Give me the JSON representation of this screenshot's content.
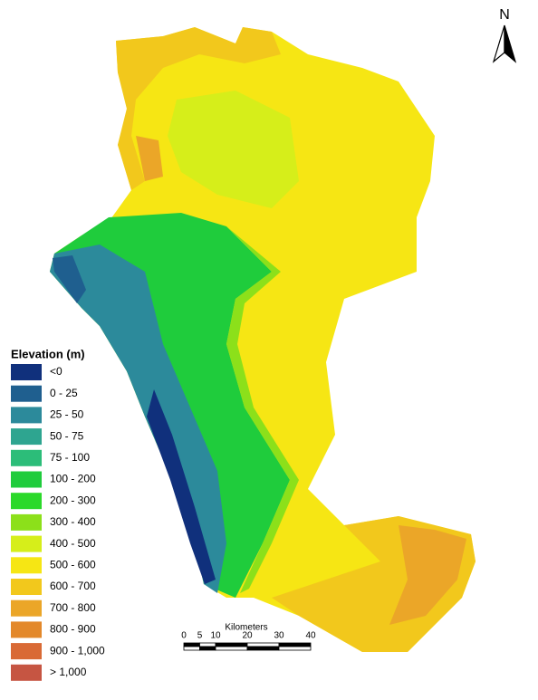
{
  "north_arrow": {
    "label": "N"
  },
  "legend": {
    "title": "Elevation (m)",
    "items": [
      {
        "label": "<0",
        "color": "#10307c"
      },
      {
        "label": "0 - 25",
        "color": "#1f5f8f"
      },
      {
        "label": "25 - 50",
        "color": "#2c8a9b"
      },
      {
        "label": "50 - 75",
        "color": "#2ea590"
      },
      {
        "label": "75 - 100",
        "color": "#2cbd79"
      },
      {
        "label": "100 - 200",
        "color": "#1fcc3c"
      },
      {
        "label": "200 - 300",
        "color": "#2bd92a"
      },
      {
        "label": "300 - 400",
        "color": "#8ce01a"
      },
      {
        "label": "400 - 500",
        "color": "#d6ee1a"
      },
      {
        "label": "500 - 600",
        "color": "#f6e614"
      },
      {
        "label": "600 - 700",
        "color": "#f2c81c"
      },
      {
        "label": "700 - 800",
        "color": "#eba628"
      },
      {
        "label": "800 - 900",
        "color": "#e3882a"
      },
      {
        "label": "900 - 1,000",
        "color": "#d96a35"
      },
      {
        "label": "> 1,000",
        "color": "#c65542"
      }
    ]
  },
  "scale_bar": {
    "title": "Kilometers",
    "ticks": [
      0,
      5,
      10,
      20,
      30,
      40
    ]
  }
}
